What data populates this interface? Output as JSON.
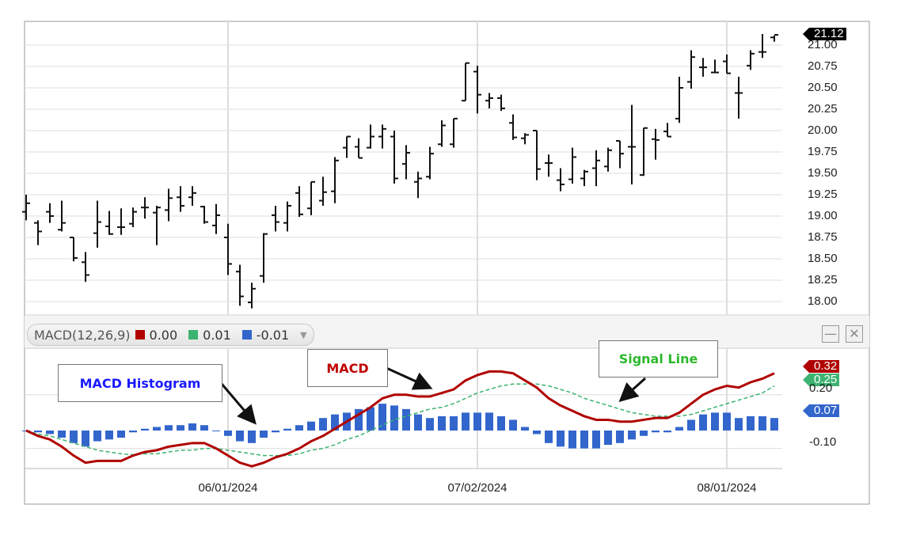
{
  "chart_data": [
    {
      "type": "ohlc",
      "ylim": [
        18.0,
        21.12
      ],
      "yticks": [
        "18.00",
        "18.25",
        "18.50",
        "18.75",
        "19.00",
        "19.25",
        "19.50",
        "19.75",
        "20.00",
        "20.25",
        "20.50",
        "20.75",
        "21.00"
      ],
      "last_price_label": "21.12",
      "last_price_color": "#000000",
      "grid": true,
      "ohlc": [
        [
          19.05,
          19.25,
          18.95,
          19.15
        ],
        [
          18.92,
          18.95,
          18.66,
          18.82
        ],
        [
          19.05,
          19.15,
          18.92,
          19.0
        ],
        [
          18.84,
          19.18,
          18.82,
          18.92
        ],
        [
          18.75,
          18.75,
          18.47,
          18.51
        ],
        [
          18.46,
          18.58,
          18.23,
          18.31
        ],
        [
          18.8,
          19.18,
          18.63,
          18.93
        ],
        [
          18.88,
          19.06,
          18.78,
          18.79
        ],
        [
          18.87,
          19.09,
          18.78,
          18.87
        ],
        [
          18.91,
          19.1,
          18.87,
          19.05
        ],
        [
          19.1,
          19.22,
          18.97,
          19.1
        ],
        [
          19.04,
          19.12,
          18.66,
          19.1
        ],
        [
          19.07,
          19.32,
          18.94,
          19.21
        ],
        [
          19.22,
          19.35,
          19.05,
          19.12
        ],
        [
          19.22,
          19.35,
          19.12,
          19.27
        ],
        [
          19.11,
          19.12,
          18.91,
          18.93
        ],
        [
          18.89,
          19.14,
          18.79,
          19.01
        ],
        [
          18.75,
          18.91,
          18.31,
          18.44
        ],
        [
          18.35,
          18.43,
          17.95,
          18.06
        ],
        [
          17.99,
          18.22,
          17.92,
          18.15
        ],
        [
          18.3,
          18.8,
          18.22,
          18.79
        ],
        [
          19.01,
          19.12,
          18.82,
          18.93
        ],
        [
          18.92,
          19.17,
          18.82,
          19.12
        ],
        [
          19.27,
          19.35,
          18.99,
          19.02
        ],
        [
          19.09,
          19.4,
          19.01,
          19.4
        ],
        [
          19.18,
          19.46,
          19.12,
          19.28
        ],
        [
          19.29,
          19.69,
          19.15,
          19.65
        ],
        [
          19.8,
          19.93,
          19.68,
          19.93
        ],
        [
          19.81,
          19.91,
          19.68,
          19.68
        ],
        [
          19.8,
          20.07,
          19.79,
          19.93
        ],
        [
          19.93,
          20.07,
          19.79,
          20.02
        ],
        [
          19.93,
          20.0,
          19.38,
          19.44
        ],
        [
          19.61,
          19.83,
          19.43,
          19.74
        ],
        [
          19.4,
          19.52,
          19.21,
          19.44
        ],
        [
          19.46,
          19.81,
          19.43,
          19.73
        ],
        [
          19.84,
          20.12,
          19.81,
          20.06
        ],
        [
          19.84,
          20.14,
          19.8,
          20.14
        ],
        [
          20.35,
          20.79,
          20.35,
          20.79
        ],
        [
          20.69,
          20.76,
          20.2,
          20.42
        ],
        [
          20.35,
          20.44,
          20.26,
          20.38
        ],
        [
          20.38,
          20.42,
          20.23,
          20.26
        ],
        [
          20.09,
          20.19,
          19.89,
          19.92
        ],
        [
          19.91,
          19.97,
          19.84,
          19.95
        ],
        [
          20.0,
          20.0,
          19.42,
          19.55
        ],
        [
          19.62,
          19.72,
          19.46,
          19.62
        ],
        [
          19.42,
          19.56,
          19.29,
          19.37
        ],
        [
          19.43,
          19.8,
          19.38,
          19.69
        ],
        [
          19.44,
          19.54,
          19.35,
          19.52
        ],
        [
          19.56,
          19.77,
          19.35,
          19.65
        ],
        [
          19.58,
          19.8,
          19.52,
          19.77
        ],
        [
          19.88,
          19.88,
          19.56,
          19.73
        ],
        [
          19.81,
          20.3,
          19.37,
          19.81
        ],
        [
          19.48,
          20.03,
          19.47,
          20.03
        ],
        [
          19.9,
          20.02,
          19.66,
          19.89
        ],
        [
          19.99,
          20.09,
          19.93,
          19.93
        ],
        [
          20.14,
          20.63,
          20.09,
          20.5
        ],
        [
          20.57,
          20.94,
          20.49,
          20.86
        ],
        [
          20.74,
          20.85,
          20.63,
          20.74
        ],
        [
          20.68,
          20.83,
          20.68,
          20.68
        ],
        [
          20.81,
          20.89,
          20.67,
          20.67
        ],
        [
          20.44,
          20.63,
          20.14,
          20.44
        ],
        [
          20.76,
          20.94,
          20.71,
          20.9
        ],
        [
          20.92,
          21.13,
          20.85,
          20.92
        ],
        [
          21.09,
          21.11,
          21.04,
          21.12
        ]
      ]
    },
    {
      "type": "line+bar",
      "title": "MACD(12,26,9)",
      "ylim": [
        -0.2,
        0.35
      ],
      "yticks": [
        "0.20",
        "-0.10"
      ],
      "xticks": [
        {
          "index": 17,
          "label": "06/01/2024"
        },
        {
          "index": 38,
          "label": "07/02/2024"
        },
        {
          "index": 59,
          "label": "08/01/2024"
        }
      ],
      "series": [
        {
          "name": "MACD",
          "color": "#b00000",
          "legend_value": "0.00",
          "last_label": "0.32",
          "values": [
            0.0,
            -0.03,
            -0.05,
            -0.09,
            -0.14,
            -0.18,
            -0.17,
            -0.17,
            -0.17,
            -0.14,
            -0.12,
            -0.11,
            -0.09,
            -0.08,
            -0.07,
            -0.07,
            -0.1,
            -0.14,
            -0.18,
            -0.2,
            -0.18,
            -0.15,
            -0.13,
            -0.1,
            -0.06,
            -0.03,
            0.01,
            0.05,
            0.09,
            0.13,
            0.18,
            0.2,
            0.2,
            0.19,
            0.19,
            0.21,
            0.23,
            0.28,
            0.31,
            0.33,
            0.33,
            0.32,
            0.28,
            0.24,
            0.18,
            0.14,
            0.11,
            0.08,
            0.06,
            0.06,
            0.05,
            0.05,
            0.06,
            0.07,
            0.07,
            0.1,
            0.15,
            0.2,
            0.23,
            0.25,
            0.24,
            0.27,
            0.29,
            0.32
          ]
        },
        {
          "name": "Signal Line",
          "color": "#3cb371",
          "legend_value": "0.01",
          "last_label": "0.25",
          "values": [
            0.0,
            -0.02,
            -0.03,
            -0.05,
            -0.07,
            -0.09,
            -0.11,
            -0.12,
            -0.13,
            -0.135,
            -0.13,
            -0.13,
            -0.12,
            -0.11,
            -0.11,
            -0.1,
            -0.1,
            -0.11,
            -0.12,
            -0.13,
            -0.14,
            -0.14,
            -0.14,
            -0.13,
            -0.11,
            -0.1,
            -0.08,
            -0.05,
            -0.03,
            0.0,
            0.03,
            0.06,
            0.08,
            0.1,
            0.12,
            0.13,
            0.15,
            0.18,
            0.21,
            0.23,
            0.25,
            0.26,
            0.26,
            0.26,
            0.25,
            0.23,
            0.21,
            0.18,
            0.16,
            0.14,
            0.12,
            0.1,
            0.09,
            0.08,
            0.08,
            0.08,
            0.09,
            0.11,
            0.13,
            0.15,
            0.17,
            0.19,
            0.21,
            0.25
          ]
        },
        {
          "name": "MACD Histogram",
          "color": "#3366cc",
          "legend_value": "-0.01",
          "last_label": "0.07",
          "values": [
            0,
            -0.01,
            -0.02,
            -0.04,
            -0.07,
            -0.09,
            -0.06,
            -0.05,
            -0.04,
            -0.01,
            0.01,
            0.02,
            0.03,
            0.03,
            0.04,
            0.03,
            0.0,
            -0.03,
            -0.06,
            -0.07,
            -0.04,
            -0.01,
            0.01,
            0.03,
            0.05,
            0.07,
            0.09,
            0.1,
            0.12,
            0.13,
            0.15,
            0.14,
            0.12,
            0.09,
            0.07,
            0.08,
            0.08,
            0.1,
            0.1,
            0.1,
            0.08,
            0.06,
            0.02,
            -0.02,
            -0.07,
            -0.09,
            -0.1,
            -0.1,
            -0.1,
            -0.08,
            -0.07,
            -0.05,
            -0.03,
            -0.01,
            -0.01,
            0.02,
            0.06,
            0.09,
            0.1,
            0.1,
            0.07,
            0.08,
            0.08,
            0.07
          ]
        }
      ],
      "annotations": [
        "MACD Histogram",
        "MACD",
        "Signal Line"
      ]
    }
  ]
}
